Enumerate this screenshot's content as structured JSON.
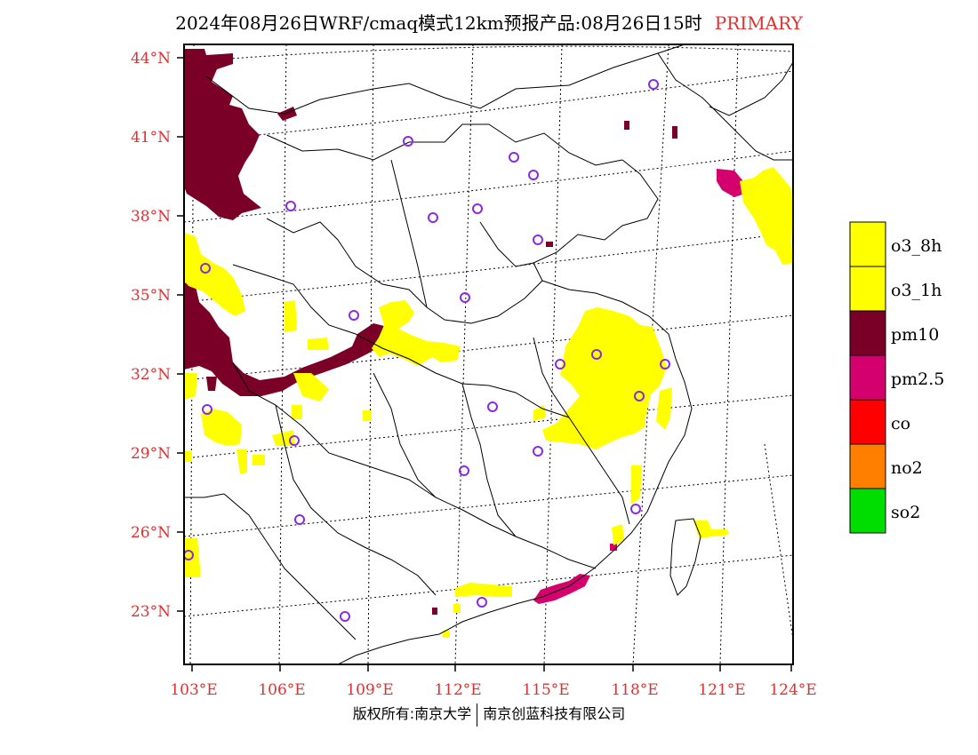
{
  "title": {
    "main": "2024年08月26日WRF/cmaq模式12km预报产品:08月26日15时",
    "tag": "PRIMARY"
  },
  "axes": {
    "lon_labels": [
      "103°E",
      "106°E",
      "109°E",
      "112°E",
      "115°E",
      "118°E",
      "121°E",
      "124°E"
    ],
    "lat_labels": [
      "44°N",
      "41°N",
      "38°N",
      "35°N",
      "32°N",
      "29°N",
      "26°N",
      "23°N"
    ]
  },
  "legend": [
    {
      "label": "o3_8h",
      "color": "#ffff00"
    },
    {
      "label": "o3_1h",
      "color": "#ffff00"
    },
    {
      "label": "pm10",
      "color": "#7a0028"
    },
    {
      "label": "pm2.5",
      "color": "#d4006e"
    },
    {
      "label": "co",
      "color": "#ff0000"
    },
    {
      "label": "no2",
      "color": "#ff7f00"
    },
    {
      "label": "so2",
      "color": "#00dd00"
    }
  ],
  "footer": {
    "left": "版权所有:南京大学",
    "right": "南京创蓝科技有限公司"
  },
  "colors": {
    "tick": "#e03030",
    "city_marker": "#8a2be2",
    "o3": "#ffff00",
    "pm10": "#7a0028",
    "pm25": "#d4006e"
  }
}
